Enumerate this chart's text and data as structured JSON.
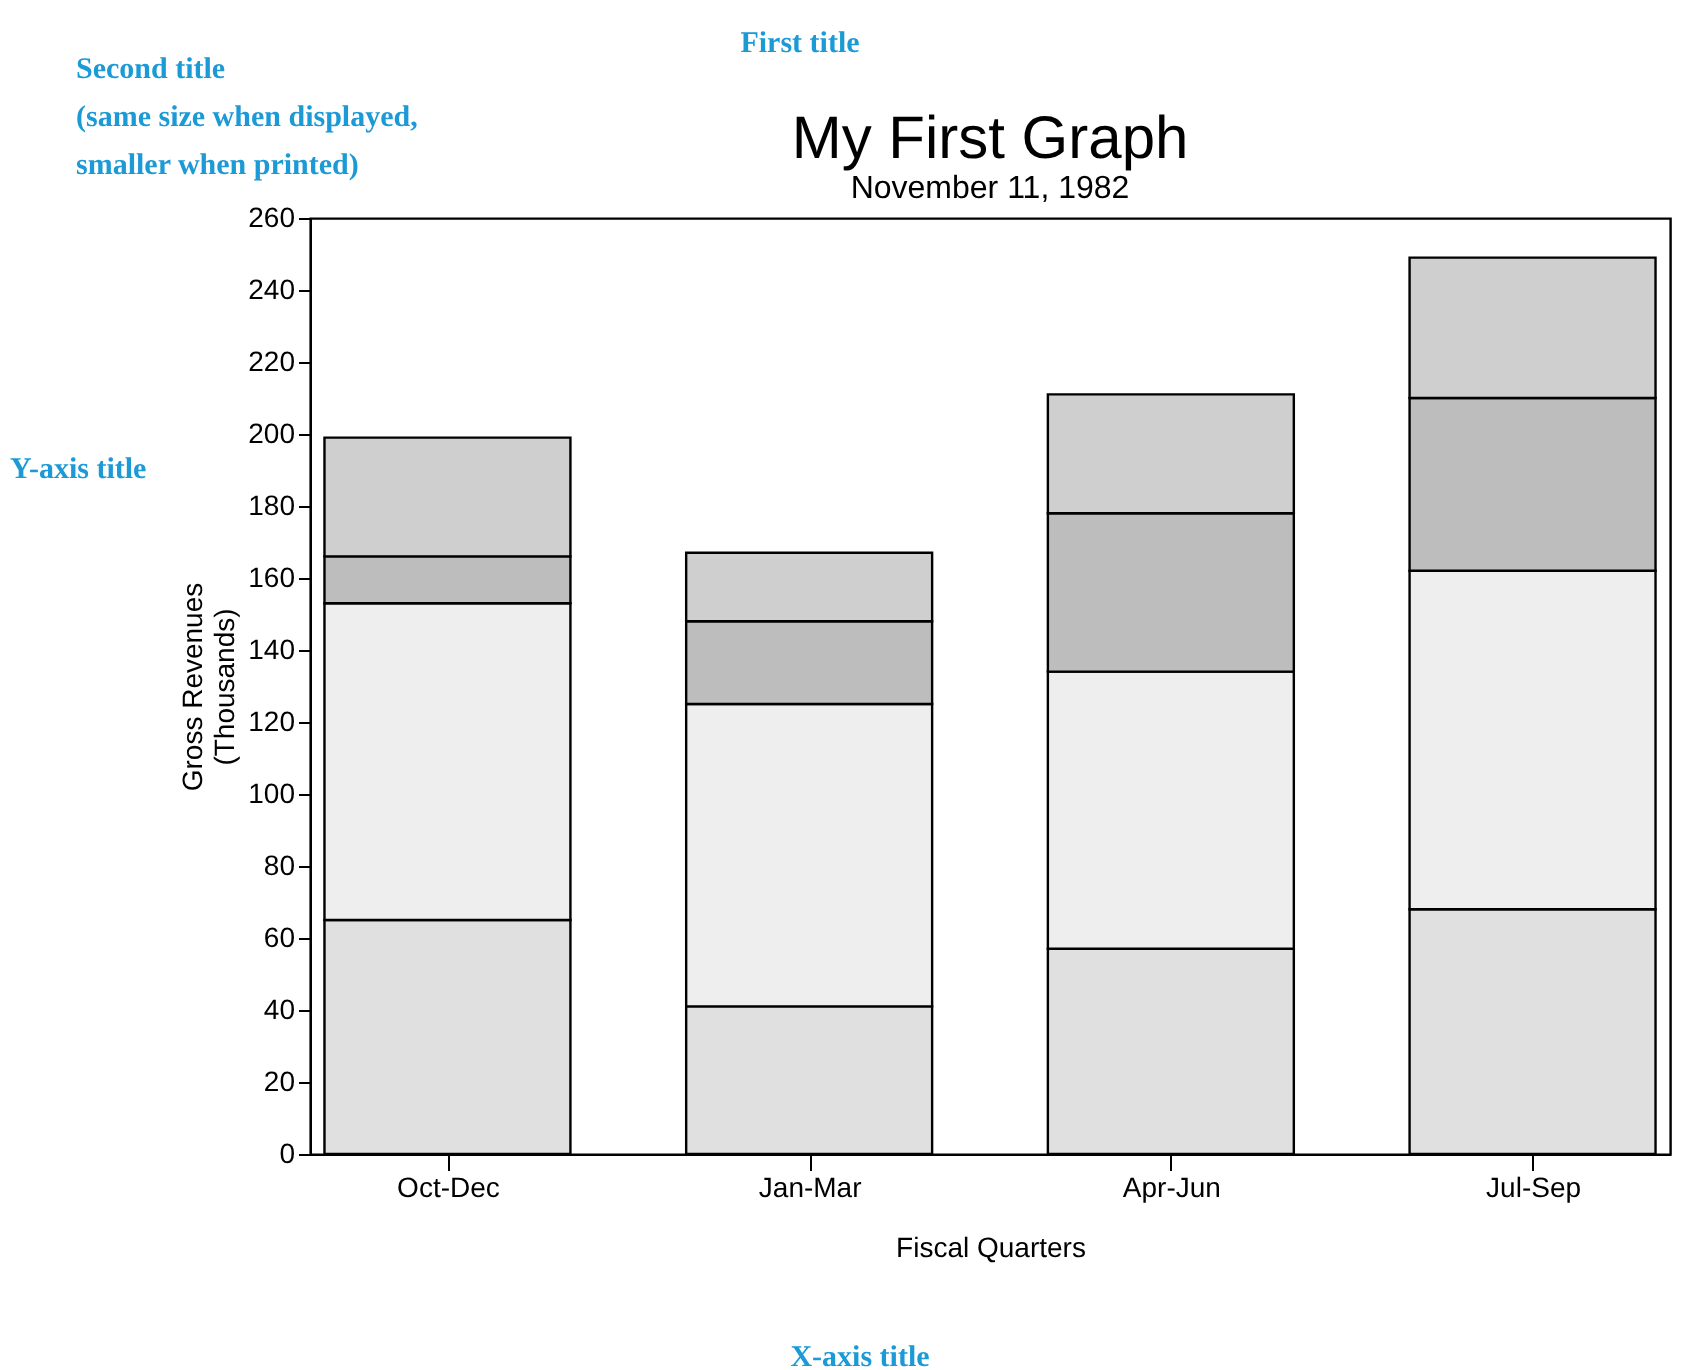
{
  "chart_data": {
    "type": "bar",
    "title": "My First Graph",
    "subtitle": "November 11, 1982",
    "xlabel": "Fiscal Quarters",
    "ylabel": "Gross Revenues\n(Thousands)",
    "categories": [
      "Oct-Dec",
      "Jan-Mar",
      "Apr-Jun",
      "Jul-Sep"
    ],
    "stacked": true,
    "series": [
      {
        "color": "#e0e0e0",
        "values": [
          65,
          41,
          57,
          68
        ]
      },
      {
        "color": "#eeeeee",
        "values": [
          88,
          84,
          77,
          94
        ]
      },
      {
        "color": "#bdbdbd",
        "values": [
          13,
          23,
          44,
          48
        ]
      },
      {
        "color": "#cfcfcf",
        "values": [
          33,
          19,
          33,
          39
        ]
      }
    ],
    "ylim": [
      0,
      260
    ],
    "yticks": [
      0,
      20,
      40,
      60,
      80,
      100,
      120,
      140,
      160,
      180,
      200,
      220,
      240,
      260
    ],
    "grid": false,
    "legend": false,
    "annotations": [
      "First title",
      "Second title\n(same size when displayed,\nsmaller when printed)",
      "Y-axis title",
      "X-axis title"
    ]
  }
}
